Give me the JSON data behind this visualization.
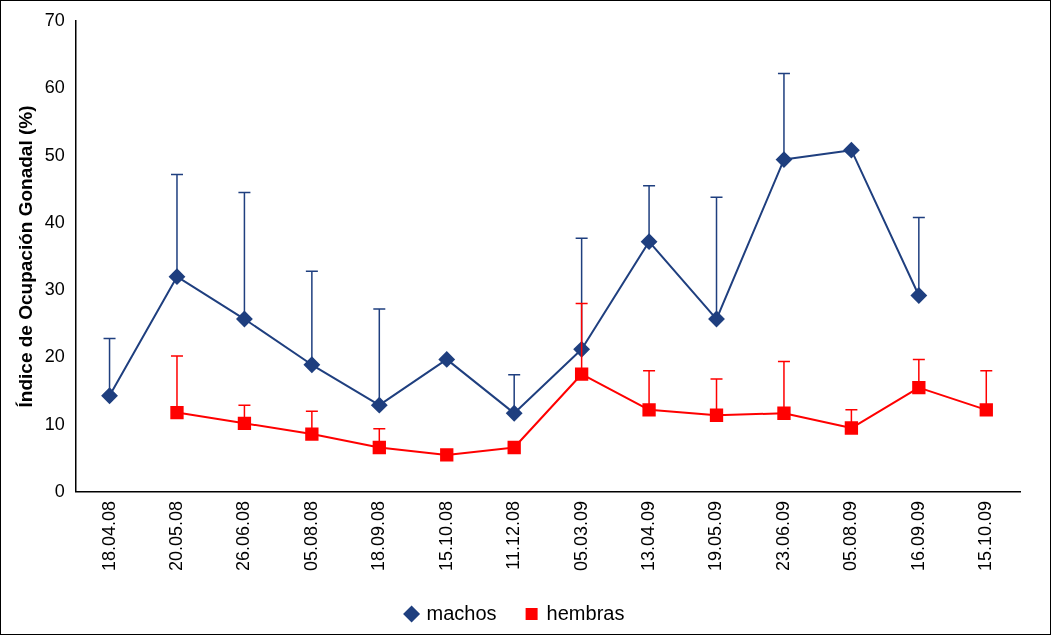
{
  "chart_data": {
    "type": "line",
    "ylabel": "Índice de Ocupación Gonadal (%)",
    "categories": [
      "18.04.08",
      "20.05.08",
      "26.06.08",
      "05.08.08",
      "18.09.08",
      "15.10.08",
      "11.12.08",
      "05.03.09",
      "13.04.09",
      "19.05.09",
      "23.06.09",
      "05.08.09",
      "16.09.09",
      "15.10.09"
    ],
    "series": [
      {
        "name": "machos",
        "color": "#1f3f7f",
        "marker": "diamond",
        "values": [
          14.3,
          32.0,
          25.7,
          18.9,
          12.9,
          19.7,
          11.7,
          21.2,
          37.2,
          25.7,
          49.4,
          50.8,
          29.2,
          null
        ],
        "errors": [
          [
            14.3,
            22.8
          ],
          [
            32.0,
            47.2
          ],
          [
            25.7,
            44.5
          ],
          [
            18.9,
            32.8
          ],
          [
            12.9,
            27.2
          ],
          null,
          [
            11.7,
            17.4
          ],
          [
            21.2,
            37.7
          ],
          [
            37.2,
            45.5
          ],
          [
            25.7,
            43.8
          ],
          [
            49.4,
            62.2
          ],
          null,
          [
            29.2,
            40.8
          ],
          null
        ]
      },
      {
        "name": "hembras",
        "color": "#ff0000",
        "marker": "square",
        "values": [
          null,
          11.8,
          10.2,
          8.6,
          6.6,
          5.5,
          6.6,
          17.5,
          12.2,
          11.4,
          11.7,
          9.5,
          15.5,
          12.2
        ],
        "errors": [
          null,
          [
            11.8,
            20.2
          ],
          [
            10.2,
            12.9
          ],
          [
            8.6,
            12.0
          ],
          [
            6.6,
            9.4
          ],
          null,
          null,
          [
            17.5,
            28.0
          ],
          [
            12.2,
            18.0
          ],
          [
            11.4,
            16.8
          ],
          [
            11.7,
            19.4
          ],
          [
            9.5,
            12.2
          ],
          [
            15.5,
            19.7
          ],
          [
            12.2,
            18.0
          ]
        ]
      }
    ],
    "ylim": [
      0,
      70
    ],
    "yticks": [
      0,
      10,
      20,
      30,
      40,
      50,
      60,
      70
    ],
    "grid": false,
    "legend": "bottom",
    "line_style": "solid"
  }
}
